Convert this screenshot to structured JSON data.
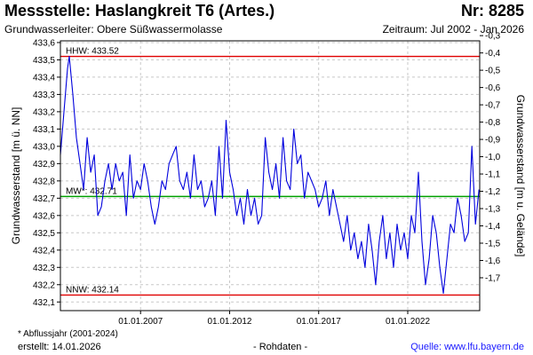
{
  "header": {
    "title": "Messstelle: Haslangkreit T6 (Artes.)",
    "nr": "Nr: 8285",
    "aquifer": "Grundwasserleiter:   Obere Süßwassermolasse",
    "period": "Zeitraum: Jul 2002 - Jan 2026"
  },
  "footer": {
    "footnote": "* Abflussjahr (2001-2024)",
    "created": "erstellt:  14.01.2026",
    "raw": "- Rohdaten -",
    "source": "Quelle:  www.lfu.bayern.de"
  },
  "colors": {
    "series": "#0000dd",
    "hhw": "#e00000",
    "nnw": "#e00000",
    "mw": "#00a000",
    "grid": "#c8c8c8"
  },
  "chart_data": {
    "type": "line",
    "ylabel": "Grundwasserstand [m ü. NN]",
    "y2label": "Grundwasserstand [m u. Gelände]",
    "ylim": [
      432.05,
      433.61
    ],
    "xlim": [
      2002.5,
      2026.04
    ],
    "yticks": [
      "433,6",
      "433,5",
      "433,4",
      "433,3",
      "433,2",
      "433,1",
      "433,0",
      "432,9",
      "432,8",
      "432,7",
      "432,6",
      "432,5",
      "432,4",
      "432,3",
      "432,2",
      "432,1"
    ],
    "y2ticks": [
      "-1,7",
      "-1,6",
      "-1,5",
      "-1,4",
      "-1,3",
      "-1,2",
      "-1,1",
      "-1,0",
      "-0,9",
      "-0,8",
      "-0,7",
      "-0,6",
      "-0,5",
      "-0,4",
      "-0,3"
    ],
    "y2_offset": 433.94,
    "xticks": [
      {
        "x": 2007.0,
        "label": "01.01.2007"
      },
      {
        "x": 2012.0,
        "label": "01.01.2012"
      },
      {
        "x": 2017.0,
        "label": "01.01.2017"
      },
      {
        "x": 2022.0,
        "label": "01.01.2022"
      }
    ],
    "reference_lines": [
      {
        "key": "hhw",
        "label": "HHW: 433.52",
        "value": 433.52
      },
      {
        "key": "mw",
        "label": "MW*: 432.71",
        "value": 432.71
      },
      {
        "key": "nnw",
        "label": "NNW: 432.14",
        "value": 432.14
      }
    ],
    "series": [
      {
        "x": [
          2002.5,
          2002.7,
          2002.9,
          2003.0,
          2003.2,
          2003.4,
          2003.6,
          2003.8,
          2004.0,
          2004.2,
          2004.4,
          2004.6,
          2004.8,
          2005.0,
          2005.2,
          2005.4,
          2005.6,
          2005.8,
          2006.0,
          2006.2,
          2006.4,
          2006.6,
          2006.8,
          2007.0,
          2007.2,
          2007.4,
          2007.6,
          2007.8,
          2008.0,
          2008.2,
          2008.4,
          2008.6,
          2008.8,
          2009.0,
          2009.2,
          2009.4,
          2009.6,
          2009.8,
          2010.0,
          2010.2,
          2010.4,
          2010.6,
          2010.8,
          2011.0,
          2011.2,
          2011.4,
          2011.6,
          2011.8,
          2012.0,
          2012.2,
          2012.4,
          2012.6,
          2012.8,
          2013.0,
          2013.2,
          2013.4,
          2013.6,
          2013.8,
          2014.0,
          2014.2,
          2014.4,
          2014.6,
          2014.8,
          2015.0,
          2015.2,
          2015.4,
          2015.6,
          2015.8,
          2016.0,
          2016.2,
          2016.4,
          2016.6,
          2016.8,
          2017.0,
          2017.2,
          2017.4,
          2017.6,
          2017.8,
          2018.0,
          2018.2,
          2018.4,
          2018.6,
          2018.8,
          2019.0,
          2019.2,
          2019.4,
          2019.6,
          2019.8,
          2020.0,
          2020.2,
          2020.4,
          2020.6,
          2020.8,
          2021.0,
          2021.2,
          2021.4,
          2021.6,
          2021.8,
          2022.0,
          2022.2,
          2022.4,
          2022.6,
          2022.8,
          2023.0,
          2023.2,
          2023.4,
          2023.6,
          2023.8,
          2024.0,
          2024.2,
          2024.4,
          2024.6,
          2024.8,
          2025.0,
          2025.2,
          2025.4,
          2025.6,
          2025.8,
          2026.0
        ],
        "values": [
          432.95,
          433.2,
          433.45,
          433.52,
          433.3,
          433.05,
          432.9,
          432.75,
          433.05,
          432.85,
          432.95,
          432.6,
          432.65,
          432.8,
          432.9,
          432.75,
          432.9,
          432.8,
          432.85,
          432.6,
          432.95,
          432.7,
          432.8,
          432.75,
          432.9,
          432.8,
          432.65,
          432.55,
          432.65,
          432.8,
          432.75,
          432.9,
          432.95,
          433.0,
          432.8,
          432.75,
          432.85,
          432.7,
          432.95,
          432.75,
          432.8,
          432.65,
          432.7,
          432.8,
          432.6,
          433.0,
          432.7,
          433.15,
          432.85,
          432.75,
          432.6,
          432.7,
          432.55,
          432.75,
          432.6,
          432.7,
          432.55,
          432.6,
          433.05,
          432.85,
          432.75,
          432.9,
          432.7,
          433.05,
          432.8,
          432.75,
          433.1,
          432.9,
          432.95,
          432.7,
          432.85,
          432.8,
          432.75,
          432.65,
          432.7,
          432.8,
          432.6,
          432.75,
          432.65,
          432.55,
          432.45,
          432.6,
          432.4,
          432.5,
          432.35,
          432.45,
          432.3,
          432.55,
          432.4,
          432.2,
          432.45,
          432.6,
          432.35,
          432.5,
          432.3,
          432.55,
          432.4,
          432.5,
          432.35,
          432.6,
          432.5,
          432.85,
          432.45,
          432.2,
          432.35,
          432.6,
          432.5,
          432.3,
          432.15,
          432.35,
          432.55,
          432.5,
          432.7,
          432.6,
          432.45,
          432.5,
          433.0,
          432.55,
          432.75
        ]
      }
    ]
  }
}
